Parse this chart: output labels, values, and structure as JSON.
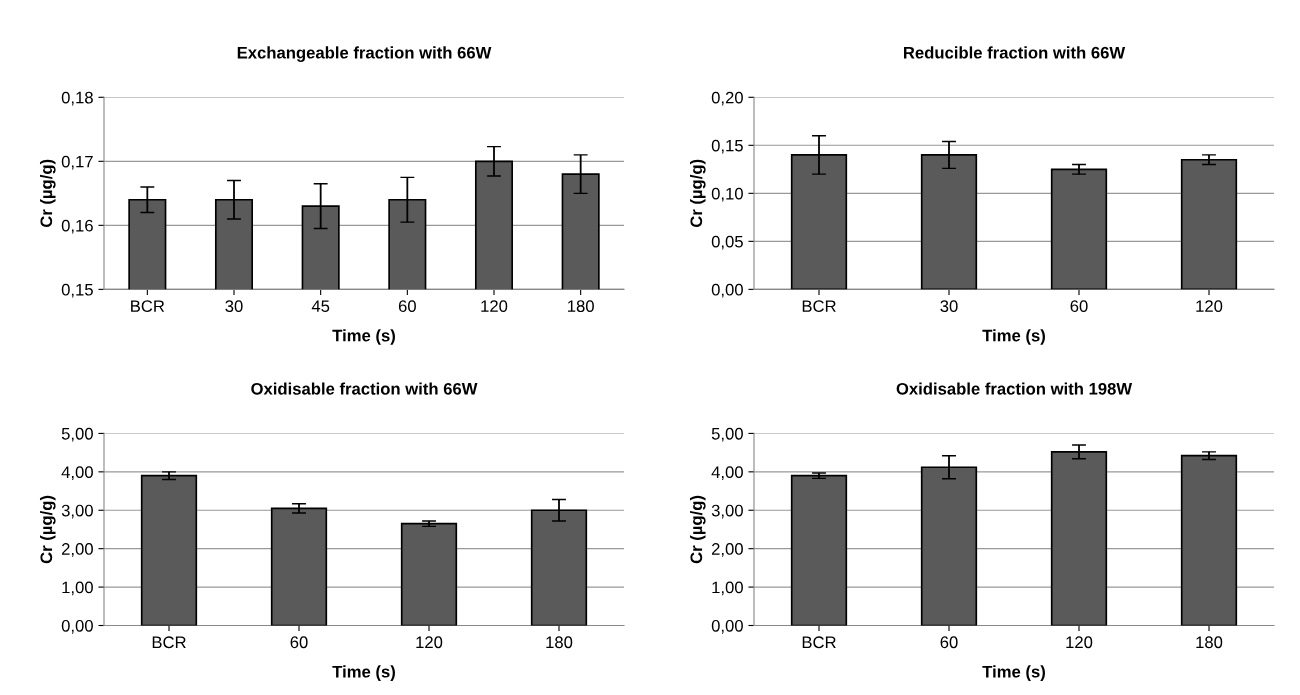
{
  "chart_data": [
    {
      "type": "bar",
      "title": "Exchangeable fraction with 66W",
      "xlabel": "Time (s)",
      "ylabel": "Cr (µg/g)",
      "categories": [
        "BCR",
        "30",
        "45",
        "60",
        "120",
        "180"
      ],
      "values": [
        0.164,
        0.164,
        0.163,
        0.164,
        0.17,
        0.168
      ],
      "errors": [
        0.002,
        0.003,
        0.0035,
        0.0035,
        0.0023,
        0.003
      ],
      "color": "#5a5a5a",
      "ylim": [
        0.15,
        0.18
      ],
      "yticks": [
        {
          "value": 0.15,
          "label": "0,15"
        },
        {
          "value": 0.16,
          "label": "0,16"
        },
        {
          "value": 0.17,
          "label": "0,17"
        },
        {
          "value": 0.18,
          "label": "0,18"
        }
      ],
      "grid": "y"
    },
    {
      "type": "bar",
      "title": "Reducible fraction with 66W",
      "xlabel": "Time (s)",
      "ylabel": "Cr (µg/g)",
      "categories": [
        "BCR",
        "30",
        "60",
        "120"
      ],
      "values": [
        0.14,
        0.14,
        0.125,
        0.135
      ],
      "errors": [
        0.02,
        0.014,
        0.005,
        0.005
      ],
      "color": "#5a5a5a",
      "ylim": [
        0,
        0.2
      ],
      "yticks": [
        {
          "value": 0,
          "label": "0,00"
        },
        {
          "value": 0.05,
          "label": "0,05"
        },
        {
          "value": 0.1,
          "label": "0,10"
        },
        {
          "value": 0.15,
          "label": "0,15"
        },
        {
          "value": 0.2,
          "label": "0,20"
        }
      ],
      "grid": "y"
    },
    {
      "type": "bar",
      "title": "Oxidisable fraction with 66W",
      "xlabel": "Time (s)",
      "ylabel": "Cr (µg/g)",
      "categories": [
        "BCR",
        "60",
        "120",
        "180"
      ],
      "values": [
        3.9,
        3.05,
        2.65,
        3.0
      ],
      "errors": [
        0.1,
        0.12,
        0.07,
        0.28
      ],
      "color": "#5a5a5a",
      "ylim": [
        0,
        5
      ],
      "yticks": [
        {
          "value": 0,
          "label": "0,00"
        },
        {
          "value": 1,
          "label": "1,00"
        },
        {
          "value": 2,
          "label": "2,00"
        },
        {
          "value": 3,
          "label": "3,00"
        },
        {
          "value": 4,
          "label": "4,00"
        },
        {
          "value": 5,
          "label": "5,00"
        }
      ],
      "grid": "y"
    },
    {
      "type": "bar",
      "title": "Oxidisable fraction with 198W",
      "xlabel": "Time (s)",
      "ylabel": "Cr (µg/g)",
      "categories": [
        "BCR",
        "60",
        "120",
        "180"
      ],
      "values": [
        3.9,
        4.12,
        4.52,
        4.42
      ],
      "errors": [
        0.07,
        0.3,
        0.18,
        0.1
      ],
      "color": "#5a5a5a",
      "ylim": [
        0,
        5
      ],
      "yticks": [
        {
          "value": 0,
          "label": "0,00"
        },
        {
          "value": 1,
          "label": "1,00"
        },
        {
          "value": 2,
          "label": "2,00"
        },
        {
          "value": 3,
          "label": "3,00"
        },
        {
          "value": 4,
          "label": "4,00"
        },
        {
          "value": 5,
          "label": "5,00"
        }
      ],
      "grid": "y"
    }
  ]
}
